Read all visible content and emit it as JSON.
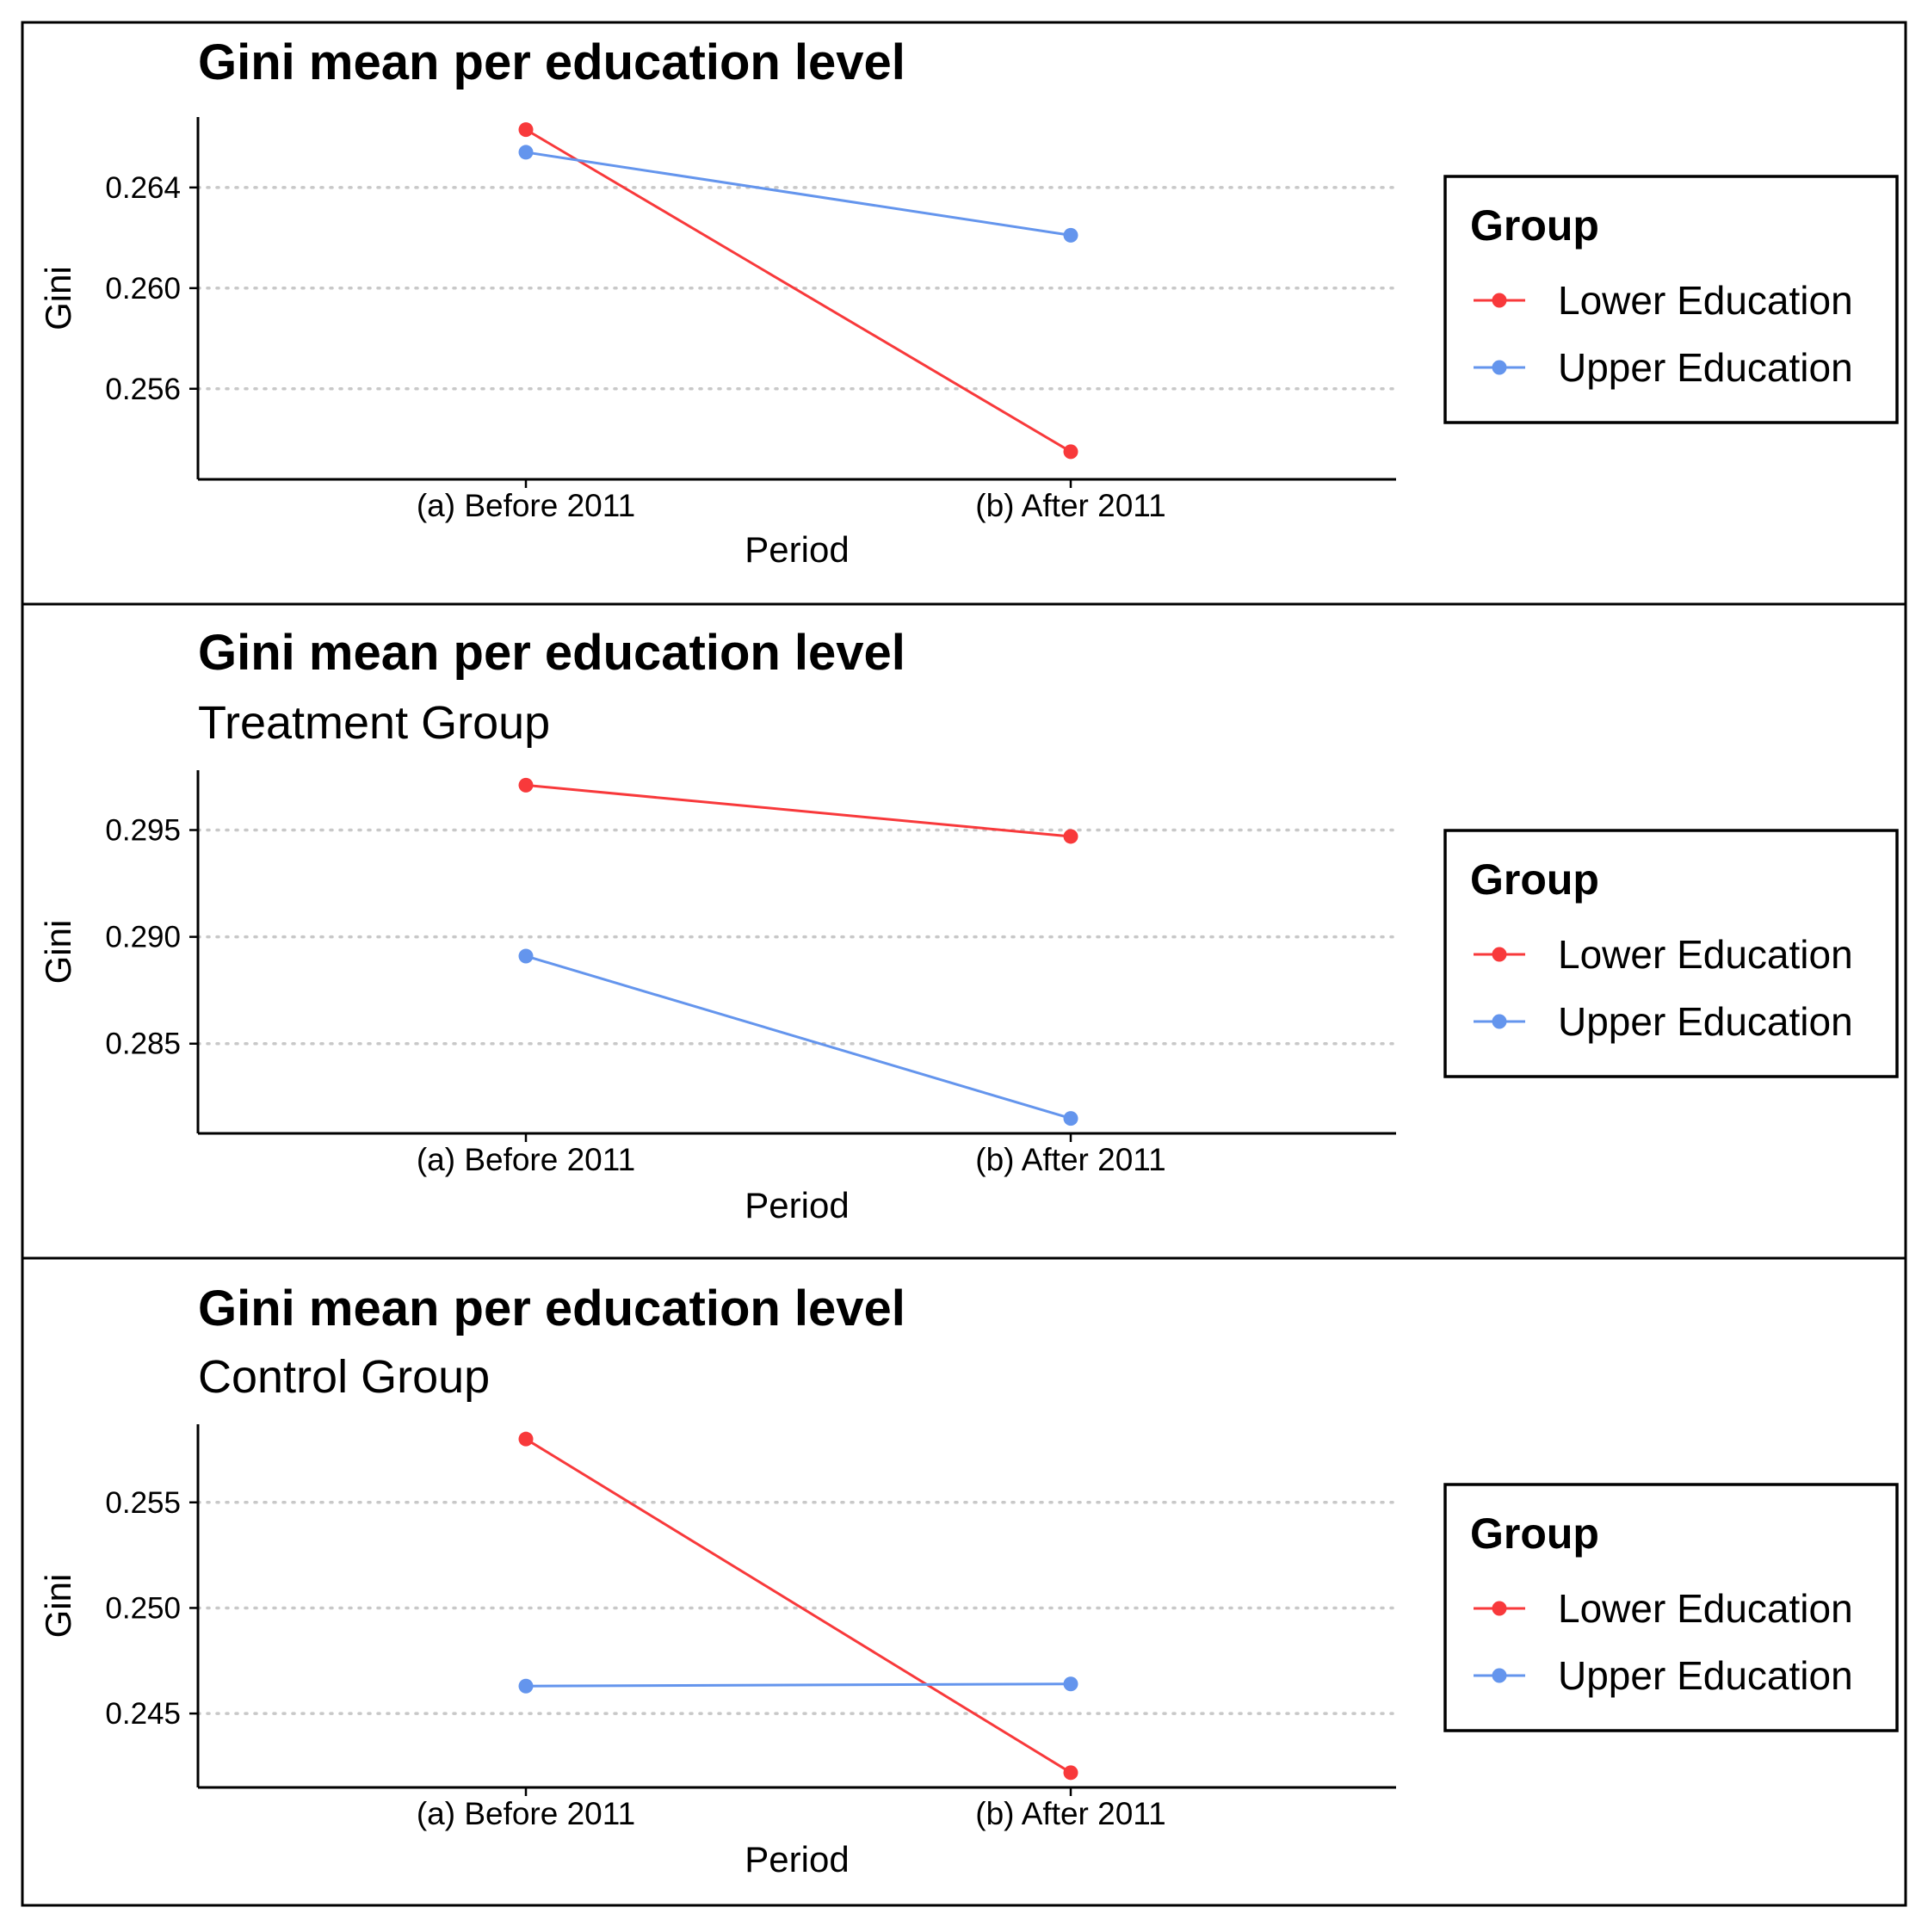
{
  "chart_data": [
    {
      "type": "line",
      "title": "Gini mean per education level",
      "subtitle": "",
      "xlabel": "Period",
      "ylabel": "Gini",
      "categories": [
        "(a) Before 2011",
        "(b) After 2011"
      ],
      "yticks": [
        0.256,
        0.26,
        0.264
      ],
      "ytick_labels": [
        "0.256",
        "0.260",
        "0.264"
      ],
      "ylim": [
        0.2524,
        0.2668
      ],
      "grid": "horizontal dotted",
      "legend_title": "Group",
      "legend_position": "right",
      "series": [
        {
          "name": "Lower Education",
          "color": "#F8393B",
          "values": [
            0.2663,
            0.2535
          ]
        },
        {
          "name": "Upper Education",
          "color": "#6495ED",
          "values": [
            0.2654,
            0.2621
          ]
        }
      ]
    },
    {
      "type": "line",
      "title": "Gini mean per education level",
      "subtitle": "Treatment Group",
      "xlabel": "Period",
      "ylabel": "Gini",
      "categories": [
        "(a) Before 2011",
        "(b) After 2011"
      ],
      "yticks": [
        0.285,
        0.29,
        0.295
      ],
      "ytick_labels": [
        "0.285",
        "0.290",
        "0.295"
      ],
      "ylim": [
        0.2808,
        0.2978
      ],
      "grid": "horizontal dotted",
      "legend_title": "Group",
      "legend_position": "right",
      "series": [
        {
          "name": "Lower Education",
          "color": "#F8393B",
          "values": [
            0.2971,
            0.2947
          ]
        },
        {
          "name": "Upper Education",
          "color": "#6495ED",
          "values": [
            0.2891,
            0.2815
          ]
        }
      ]
    },
    {
      "type": "line",
      "title": "Gini mean per education level",
      "subtitle": "Control Group",
      "xlabel": "Period",
      "ylabel": "Gini",
      "categories": [
        "(a) Before 2011",
        "(b) After 2011"
      ],
      "yticks": [
        0.245,
        0.25,
        0.255
      ],
      "ytick_labels": [
        "0.245",
        "0.250",
        "0.255"
      ],
      "ylim": [
        0.2415,
        0.2587
      ],
      "grid": "horizontal dotted",
      "legend_title": "Group",
      "legend_position": "right",
      "series": [
        {
          "name": "Lower Education",
          "color": "#F8393B",
          "values": [
            0.258,
            0.2422
          ]
        },
        {
          "name": "Upper Education",
          "color": "#6495ED",
          "values": [
            0.2463,
            0.2464
          ]
        }
      ]
    }
  ]
}
